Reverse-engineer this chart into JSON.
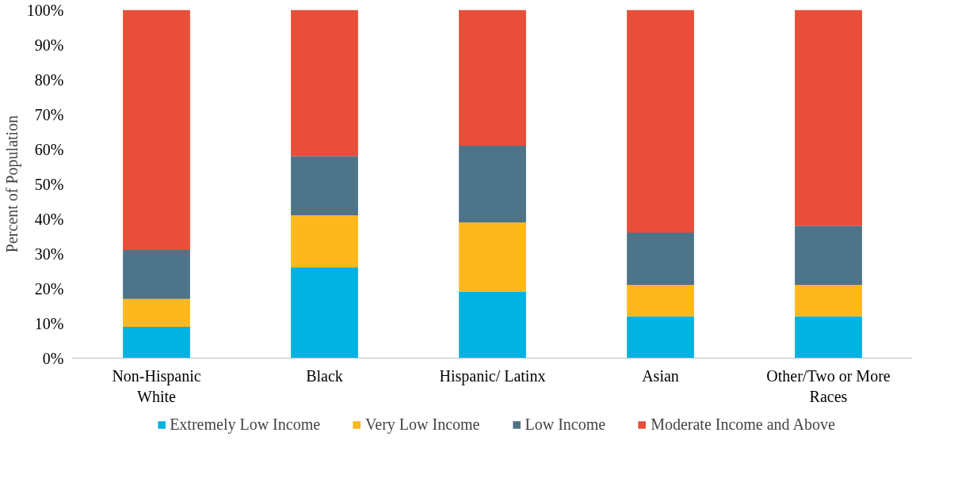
{
  "chart_data": {
    "type": "bar",
    "stacked": true,
    "ylabel": "Percent of Population",
    "categories": [
      "Non-Hispanic White",
      "Black",
      "Hispanic/ Latinx",
      "Asian",
      "Other/Two or More Races"
    ],
    "series": [
      {
        "name": "Extremely Low Income",
        "color": "#00b2e2",
        "values": [
          9,
          26,
          19,
          12,
          12
        ]
      },
      {
        "name": "Very Low Income",
        "color": "#fdb81e",
        "values": [
          8,
          15,
          20,
          9,
          9
        ]
      },
      {
        "name": "Low Income",
        "color": "#4e7489",
        "values": [
          14,
          17,
          22,
          15,
          17
        ]
      },
      {
        "name": "Moderate Income and Above",
        "color": "#e84e3a",
        "values": [
          69,
          42,
          39,
          64,
          62
        ]
      }
    ],
    "ylim": [
      0,
      100
    ],
    "yticks": [
      {
        "value": 0,
        "label": "0%"
      },
      {
        "value": 10,
        "label": "10%"
      },
      {
        "value": 20,
        "label": "20%"
      },
      {
        "value": 30,
        "label": "30%"
      },
      {
        "value": 40,
        "label": "40%"
      },
      {
        "value": 50,
        "label": "50%"
      },
      {
        "value": 60,
        "label": "60%"
      },
      {
        "value": 70,
        "label": "70%"
      },
      {
        "value": 80,
        "label": "80%"
      },
      {
        "value": 90,
        "label": "90%"
      },
      {
        "value": 100,
        "label": "100%"
      }
    ],
    "grid": false,
    "legend": "bottom"
  }
}
